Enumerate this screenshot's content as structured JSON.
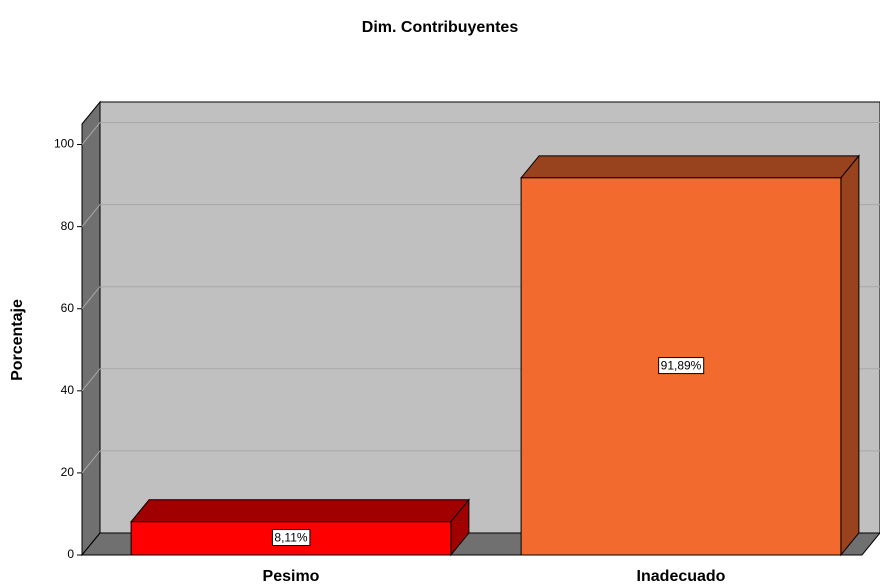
{
  "chart_data": {
    "type": "bar3d",
    "title": "Dim. Contribuyentes",
    "ylabel": "Porcentaje",
    "categories": [
      "Pesimo",
      "Inadecuado"
    ],
    "values": [
      8.11,
      91.89
    ],
    "value_labels": [
      "8,11%",
      "91,89%"
    ],
    "colors": [
      "#ff0000",
      "#f26a2e"
    ],
    "ylim": [
      0,
      105
    ],
    "yticks": [
      0,
      20,
      40,
      60,
      80,
      100
    ],
    "grid": true
  }
}
